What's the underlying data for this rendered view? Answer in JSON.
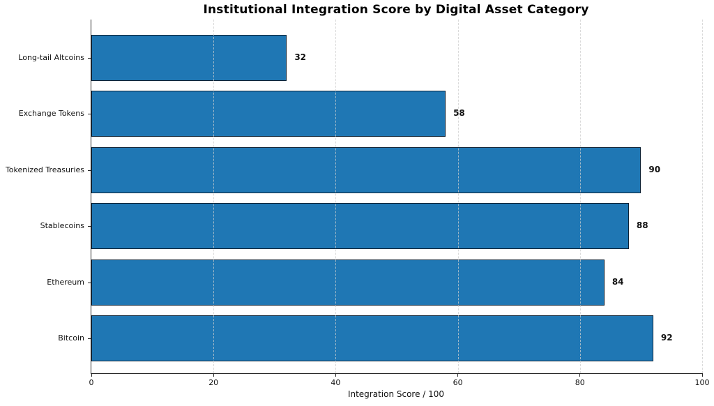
{
  "chart_data": {
    "type": "bar",
    "orientation": "horizontal",
    "title": "Institutional Integration Score by Digital Asset Category",
    "xlabel": "Integration Score / 100",
    "ylabel": "",
    "categories": [
      "Long-tail Altcoins",
      "Exchange Tokens",
      "Tokenized Treasuries",
      "Stablecoins",
      "Ethereum",
      "Bitcoin"
    ],
    "category_order": "top-to-bottom",
    "values": [
      32,
      58,
      90,
      88,
      84,
      92
    ],
    "value_labels": [
      "32",
      "58",
      "90",
      "88",
      "84",
      "92"
    ],
    "xlim": [
      0,
      100
    ],
    "xticks": [
      0,
      20,
      40,
      60,
      80,
      100
    ],
    "grid": {
      "axis": "x",
      "style": "dashed",
      "color": "#d9d9d9",
      "drawn_over_bars": true
    },
    "legend": "none",
    "colors": {
      "bar_fill": "#1f77b4",
      "bar_edge": "#0d2235",
      "axis": "#262626",
      "text": "#111111",
      "background": "#ffffff"
    }
  }
}
